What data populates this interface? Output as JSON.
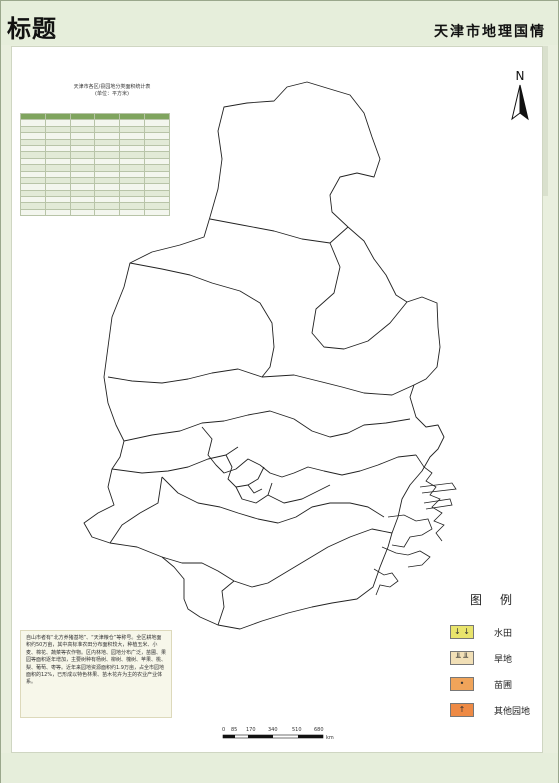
{
  "header": {
    "title": "标题",
    "subtitle": "天津市地理国情"
  },
  "compass": {
    "label": "N"
  },
  "stats": {
    "title_line1": "天津市各区/县园地分类面积统计表",
    "title_line2": "(单位：平方米)",
    "rows": 16
  },
  "legend": {
    "title": "图例",
    "items": [
      {
        "label": "水田",
        "color": "#e9e46c",
        "symbol": "↓ ↓"
      },
      {
        "label": "旱地",
        "color": "#f1dfb6",
        "symbol": "╨ ╨"
      },
      {
        "label": "苗圃",
        "color": "#f0a45a",
        "symbol": "•"
      },
      {
        "label": "其他园地",
        "color": "#ee8a45",
        "symbol": "↑"
      }
    ]
  },
  "note": {
    "text": "自山市者有“北方养猪基地”、“天津粮仓”等称号。全区耕地面积约50万亩，其中高标准农田分布面积较大，种植玉米、小麦、棉花、蔬菜等农作物。区内林地、园地分布广泛，苗圃、果园等面积逐年增加，主要树种有杨树、柳树、槐树、苹果、桃、梨、葡萄、枣等。近年来园地资源面积约1.9万亩，占全市园地面积的12%，已形成以特色林果、苗木花卉为主的农业产业体系。"
  },
  "scale": {
    "labels": [
      "0",
      "85",
      "170",
      "340",
      "510",
      "680"
    ],
    "unit": "km"
  },
  "colors": {
    "frame": "#e6eedb",
    "table_header": "#7fa45e"
  }
}
